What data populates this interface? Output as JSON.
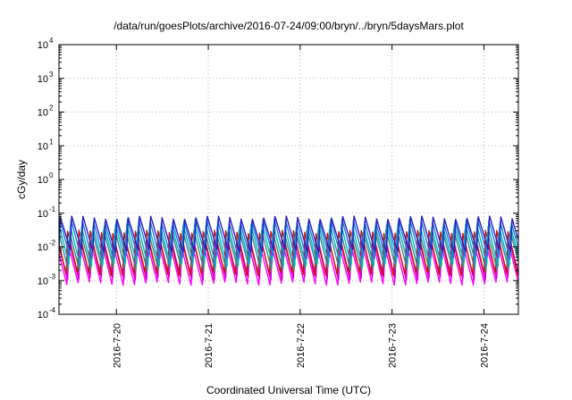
{
  "chart_data": {
    "type": "line",
    "title": "/data/run/goesPlots/archive/2016-07-24/09:00/bryn/../bryn/5daysMars.plot",
    "xlabel": "Coordinated Universal Time (UTC)",
    "ylabel": "cGy/day",
    "yscale": "log",
    "ylim": [
      0.0001,
      10000
    ],
    "y_ticks": [
      {
        "base": "10",
        "exp": "-4",
        "value": 0.0001
      },
      {
        "base": "10",
        "exp": "-3",
        "value": 0.001
      },
      {
        "base": "10",
        "exp": "-2",
        "value": 0.01
      },
      {
        "base": "10",
        "exp": "-1",
        "value": 0.1
      },
      {
        "base": "10",
        "exp": "0",
        "value": 1
      },
      {
        "base": "10",
        "exp": "1",
        "value": 10
      },
      {
        "base": "10",
        "exp": "2",
        "value": 100
      },
      {
        "base": "10",
        "exp": "3",
        "value": 1000
      },
      {
        "base": "10",
        "exp": "4",
        "value": 10000
      }
    ],
    "x_ticks": [
      "2016-7-20",
      "2016-7-21",
      "2016-7-22",
      "2016-7-23",
      "2016-7-24"
    ],
    "xlim": [
      "2016-07-19 09:00",
      "2016-07-24 09:00"
    ],
    "grid": true,
    "grid_style": "dotted",
    "legend": "none",
    "pattern": {
      "period_hours": 2.95,
      "note_free": true
    },
    "series": [
      {
        "color": "#2a1fbf",
        "peak": 0.075,
        "trough": 0.0075
      },
      {
        "color": "#1a7fd6",
        "peak": 0.06,
        "trough": 0.0048
      },
      {
        "color": "#00b5c0",
        "peak": 0.042,
        "trough": 0.003
      },
      {
        "color": "#3d8a8a",
        "peak": 0.03,
        "trough": 0.0022
      },
      {
        "color": "#d000d0",
        "peak": 0.018,
        "trough": 0.0011
      },
      {
        "color": "#ff00ff",
        "peak": 0.012,
        "trough": 0.0008
      },
      {
        "color": "#cc1111",
        "peak": 0.028,
        "trough": 0.0015
      }
    ]
  }
}
